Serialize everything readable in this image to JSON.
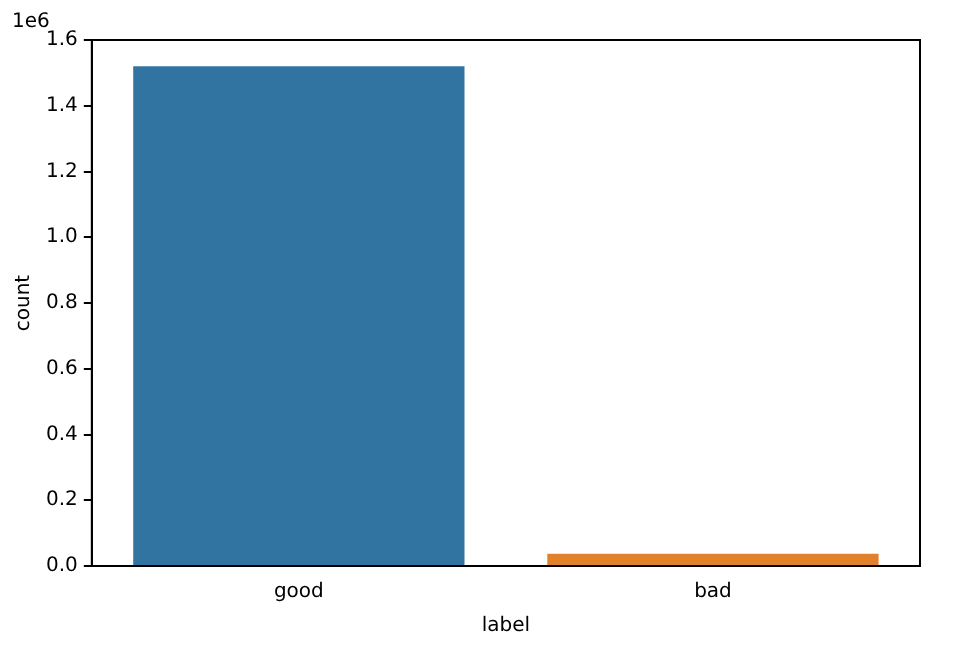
{
  "chart_data": {
    "type": "bar",
    "categories": [
      "good",
      "bad"
    ],
    "values": [
      1.52,
      0.037
    ],
    "colors": [
      "#3274a1",
      "#e1812c"
    ],
    "xlabel": "label",
    "ylabel": "count",
    "annotations": [
      "1e6"
    ],
    "ylim": [
      0,
      1.6
    ],
    "yticks": [
      {
        "value": 0,
        "label": "0.0"
      },
      {
        "value": 0.2,
        "label": "0.2"
      },
      {
        "value": 0.4,
        "label": "0.4"
      },
      {
        "value": 0.6,
        "label": "0.6"
      },
      {
        "value": 0.8,
        "label": "0.8"
      },
      {
        "value": 1,
        "label": "1.0"
      },
      {
        "value": 1.2,
        "label": "1.2"
      },
      {
        "value": 1.4,
        "label": "1.4"
      },
      {
        "value": 1.6,
        "label": "1.6"
      }
    ],
    "grid": false,
    "legend": false
  }
}
